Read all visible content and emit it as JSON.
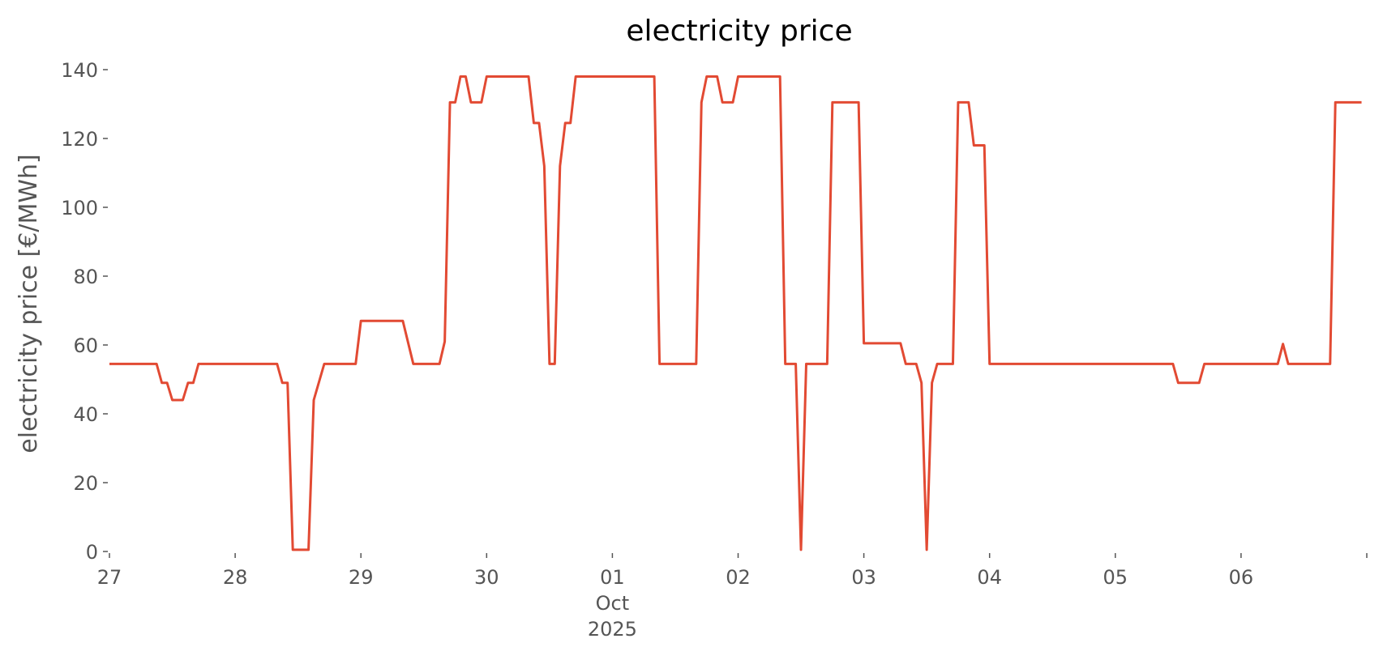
{
  "chart_data": {
    "type": "line",
    "title": "electricity price",
    "ylabel": "electricity price [€/MWh]",
    "x": [
      "2025-09-27T00:00",
      "2025-09-27T09:00",
      "2025-09-27T10:00",
      "2025-09-27T11:00",
      "2025-09-27T12:00",
      "2025-09-27T14:00",
      "2025-09-27T15:00",
      "2025-09-27T16:00",
      "2025-09-27T17:00",
      "2025-09-28T08:00",
      "2025-09-28T09:00",
      "2025-09-28T10:00",
      "2025-09-28T11:00",
      "2025-09-28T14:00",
      "2025-09-28T15:00",
      "2025-09-28T17:00",
      "2025-09-28T23:00",
      "2025-09-29T00:00",
      "2025-09-29T08:00",
      "2025-09-29T10:00",
      "2025-09-29T15:00",
      "2025-09-29T16:00",
      "2025-09-29T17:00",
      "2025-09-29T18:00",
      "2025-09-29T19:00",
      "2025-09-29T20:00",
      "2025-09-29T21:00",
      "2025-09-29T23:00",
      "2025-09-30T00:00",
      "2025-09-30T08:00",
      "2025-09-30T09:00",
      "2025-09-30T10:00",
      "2025-09-30T11:00",
      "2025-09-30T12:00",
      "2025-09-30T13:00",
      "2025-09-30T14:00",
      "2025-09-30T15:00",
      "2025-09-30T16:00",
      "2025-09-30T17:00",
      "2025-10-01T08:00",
      "2025-10-01T09:00",
      "2025-10-01T16:00",
      "2025-10-01T17:00",
      "2025-10-01T18:00",
      "2025-10-01T20:00",
      "2025-10-01T21:00",
      "2025-10-01T23:00",
      "2025-10-02T00:00",
      "2025-10-02T08:00",
      "2025-10-02T09:00",
      "2025-10-02T11:00",
      "2025-10-02T12:00",
      "2025-10-02T13:00",
      "2025-10-02T17:00",
      "2025-10-02T18:00",
      "2025-10-02T23:00",
      "2025-10-03T00:00",
      "2025-10-03T07:00",
      "2025-10-03T08:00",
      "2025-10-03T10:00",
      "2025-10-03T11:00",
      "2025-10-03T12:00",
      "2025-10-03T13:00",
      "2025-10-03T14:00",
      "2025-10-03T17:00",
      "2025-10-03T18:00",
      "2025-10-03T20:00",
      "2025-10-03T21:00",
      "2025-10-03T23:00",
      "2025-10-04T00:00",
      "2025-10-05T11:00",
      "2025-10-05T12:00",
      "2025-10-05T16:00",
      "2025-10-05T17:00",
      "2025-10-06T07:00",
      "2025-10-06T08:00",
      "2025-10-06T09:00",
      "2025-10-06T17:00",
      "2025-10-06T18:00",
      "2025-10-06T23:00"
    ],
    "series": [
      {
        "color": "#e24a33",
        "values": [
          54.5,
          54.5,
          49,
          49,
          44,
          44,
          49,
          49,
          54.5,
          54.5,
          49,
          49,
          0.5,
          0.5,
          44,
          54.5,
          54.5,
          67,
          67,
          54.5,
          54.5,
          61,
          130.5,
          130.5,
          138,
          138,
          130.5,
          130.5,
          138,
          138,
          124.5,
          124.5,
          112,
          54.5,
          54.5,
          112,
          124.5,
          124.5,
          138,
          138,
          54.5,
          54.5,
          130.5,
          138,
          138,
          130.5,
          130.5,
          138,
          138,
          54.5,
          54.5,
          0.5,
          54.5,
          54.5,
          130.5,
          130.5,
          60.5,
          60.5,
          54.5,
          54.5,
          49,
          0.5,
          49,
          54.5,
          54.5,
          130.5,
          130.5,
          118,
          118,
          54.5,
          54.5,
          49,
          49,
          54.5,
          54.5,
          60.3,
          54.5,
          54.5,
          130.5,
          130.5
        ]
      }
    ],
    "xlim": [
      "2025-09-27T00:00",
      "2025-10-07T00:00"
    ],
    "xticks": [
      {
        "value": "2025-09-27T00:00",
        "label": "27"
      },
      {
        "value": "2025-09-28T00:00",
        "label": "28"
      },
      {
        "value": "2025-09-29T00:00",
        "label": "29"
      },
      {
        "value": "2025-09-30T00:00",
        "label": "30"
      },
      {
        "value": "2025-10-01T00:00",
        "label": "01\nOct\n2025"
      },
      {
        "value": "2025-10-02T00:00",
        "label": "02"
      },
      {
        "value": "2025-10-03T00:00",
        "label": "03"
      },
      {
        "value": "2025-10-04T00:00",
        "label": "04"
      },
      {
        "value": "2025-10-05T00:00",
        "label": "05"
      },
      {
        "value": "2025-10-06T00:00",
        "label": "06"
      },
      {
        "value": "2025-10-07T00:00",
        "label": null
      }
    ],
    "ylim": [
      0,
      140
    ],
    "yticks": [
      0,
      20,
      40,
      60,
      80,
      100,
      120,
      140
    ],
    "grid": false
  }
}
